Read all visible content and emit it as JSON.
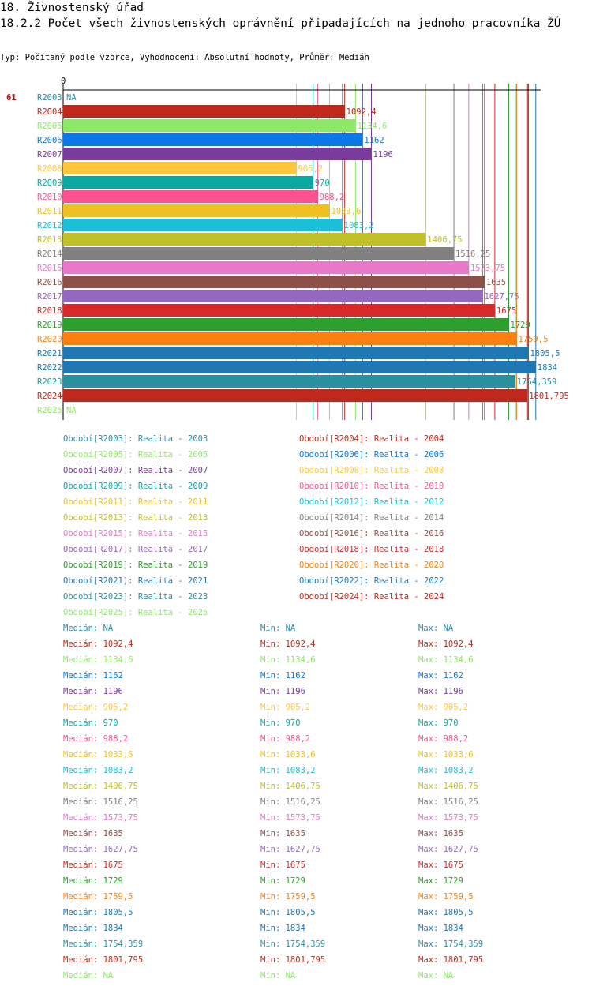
{
  "header": {
    "title": "18. Živnostenský úřad",
    "subtitle": "18.2.2 Počet všech živnostenských oprávnění připadajících na jednoho pracovníka ŽÚ",
    "description": "Typ: Počítaný podle vzorce, Vyhodnocení: Absolutní hodnoty, Průměr: Medián"
  },
  "chart_data": {
    "type": "bar",
    "orientation": "horizontal",
    "row_id": "61",
    "axis_zero_label": "0",
    "xlim": [
      0,
      1890
    ],
    "categories": [
      "R2003",
      "R2004",
      "R2005",
      "R2006",
      "R2007",
      "R2008",
      "R2009",
      "R2010",
      "R2011",
      "R2012",
      "R2013",
      "R2014",
      "R2015",
      "R2016",
      "R2017",
      "R2018",
      "R2019",
      "R2020",
      "R2021",
      "R2022",
      "R2023",
      "R2024",
      "R2025"
    ],
    "values": [
      null,
      1092.4,
      1134.6,
      1162,
      1196,
      905.2,
      970,
      988.2,
      1033.6,
      1083.2,
      1406.75,
      1516.25,
      1573.75,
      1635,
      1627.75,
      1675,
      1729,
      1759.5,
      1805.5,
      1834,
      1754.359,
      1801.795,
      null
    ],
    "value_labels": [
      "NA",
      "1092,4",
      "1134,6",
      "1162",
      "1196",
      "905,2",
      "970",
      "988,2",
      "1033,6",
      "1083,2",
      "1406,75",
      "1516,25",
      "1573,75",
      "1635",
      "1627,75",
      "1675",
      "1729",
      "1759,5",
      "1805,5",
      "1834",
      "1754,359",
      "1801,795",
      "NA"
    ],
    "colors": [
      "#2a8aa8",
      "#c0281c",
      "#8ee868",
      "#0a78e8",
      "#7a3c9c",
      "#ffc83c",
      "#0aa8a0",
      "#ff5090",
      "#f0c020",
      "#19c0d8",
      "#c0c028",
      "#808080",
      "#e878c8",
      "#8c5048",
      "#9468c0",
      "#d82828",
      "#2ca02c",
      "#ff7f0e",
      "#1f77b4",
      "#1f77b4",
      "#2a90a0",
      "#c0281c",
      "#8ee868"
    ],
    "legend": [
      "Období[R2003]: Realita - 2003",
      "Období[R2004]: Realita - 2004",
      "Období[R2005]: Realita - 2005",
      "Období[R2006]: Realita - 2006",
      "Období[R2007]: Realita - 2007",
      "Období[R2008]: Realita - 2008",
      "Období[R2009]: Realita - 2009",
      "Období[R2010]: Realita - 2010",
      "Období[R2011]: Realita - 2011",
      "Období[R2012]: Realita - 2012",
      "Období[R2013]: Realita - 2013",
      "Období[R2014]: Realita - 2014",
      "Období[R2015]: Realita - 2015",
      "Období[R2016]: Realita - 2016",
      "Období[R2017]: Realita - 2017",
      "Období[R2018]: Realita - 2018",
      "Období[R2019]: Realita - 2019",
      "Období[R2020]: Realita - 2020",
      "Období[R2021]: Realita - 2021",
      "Období[R2022]: Realita - 2022",
      "Období[R2023]: Realita - 2023",
      "Období[R2024]: Realita - 2024",
      "Období[R2025]: Realita - 2025"
    ],
    "stats": [
      {
        "median": "Medián: NA",
        "min": "Min: NA",
        "max": "Max: NA"
      },
      {
        "median": "Medián: 1092,4",
        "min": "Min: 1092,4",
        "max": "Max: 1092,4"
      },
      {
        "median": "Medián: 1134,6",
        "min": "Min: 1134,6",
        "max": "Max: 1134,6"
      },
      {
        "median": "Medián: 1162",
        "min": "Min: 1162",
        "max": "Max: 1162"
      },
      {
        "median": "Medián: 1196",
        "min": "Min: 1196",
        "max": "Max: 1196"
      },
      {
        "median": "Medián: 905,2",
        "min": "Min: 905,2",
        "max": "Max: 905,2"
      },
      {
        "median": "Medián: 970",
        "min": "Min: 970",
        "max": "Max: 970"
      },
      {
        "median": "Medián: 988,2",
        "min": "Min: 988,2",
        "max": "Max: 988,2"
      },
      {
        "median": "Medián: 1033,6",
        "min": "Min: 1033,6",
        "max": "Max: 1033,6"
      },
      {
        "median": "Medián: 1083,2",
        "min": "Min: 1083,2",
        "max": "Max: 1083,2"
      },
      {
        "median": "Medián: 1406,75",
        "min": "Min: 1406,75",
        "max": "Max: 1406,75"
      },
      {
        "median": "Medián: 1516,25",
        "min": "Min: 1516,25",
        "max": "Max: 1516,25"
      },
      {
        "median": "Medián: 1573,75",
        "min": "Min: 1573,75",
        "max": "Max: 1573,75"
      },
      {
        "median": "Medián: 1635",
        "min": "Min: 1635",
        "max": "Max: 1635"
      },
      {
        "median": "Medián: 1627,75",
        "min": "Min: 1627,75",
        "max": "Max: 1627,75"
      },
      {
        "median": "Medián: 1675",
        "min": "Min: 1675",
        "max": "Max: 1675"
      },
      {
        "median": "Medián: 1729",
        "min": "Min: 1729",
        "max": "Max: 1729"
      },
      {
        "median": "Medián: 1759,5",
        "min": "Min: 1759,5",
        "max": "Max: 1759,5"
      },
      {
        "median": "Medián: 1805,5",
        "min": "Min: 1805,5",
        "max": "Max: 1805,5"
      },
      {
        "median": "Medián: 1834",
        "min": "Min: 1834",
        "max": "Max: 1834"
      },
      {
        "median": "Medián: 1754,359",
        "min": "Min: 1754,359",
        "max": "Max: 1754,359"
      },
      {
        "median": "Medián: 1801,795",
        "min": "Min: 1801,795",
        "max": "Max: 1801,795"
      },
      {
        "median": "Medián: NA",
        "min": "Min: NA",
        "max": "Max: NA"
      }
    ]
  }
}
